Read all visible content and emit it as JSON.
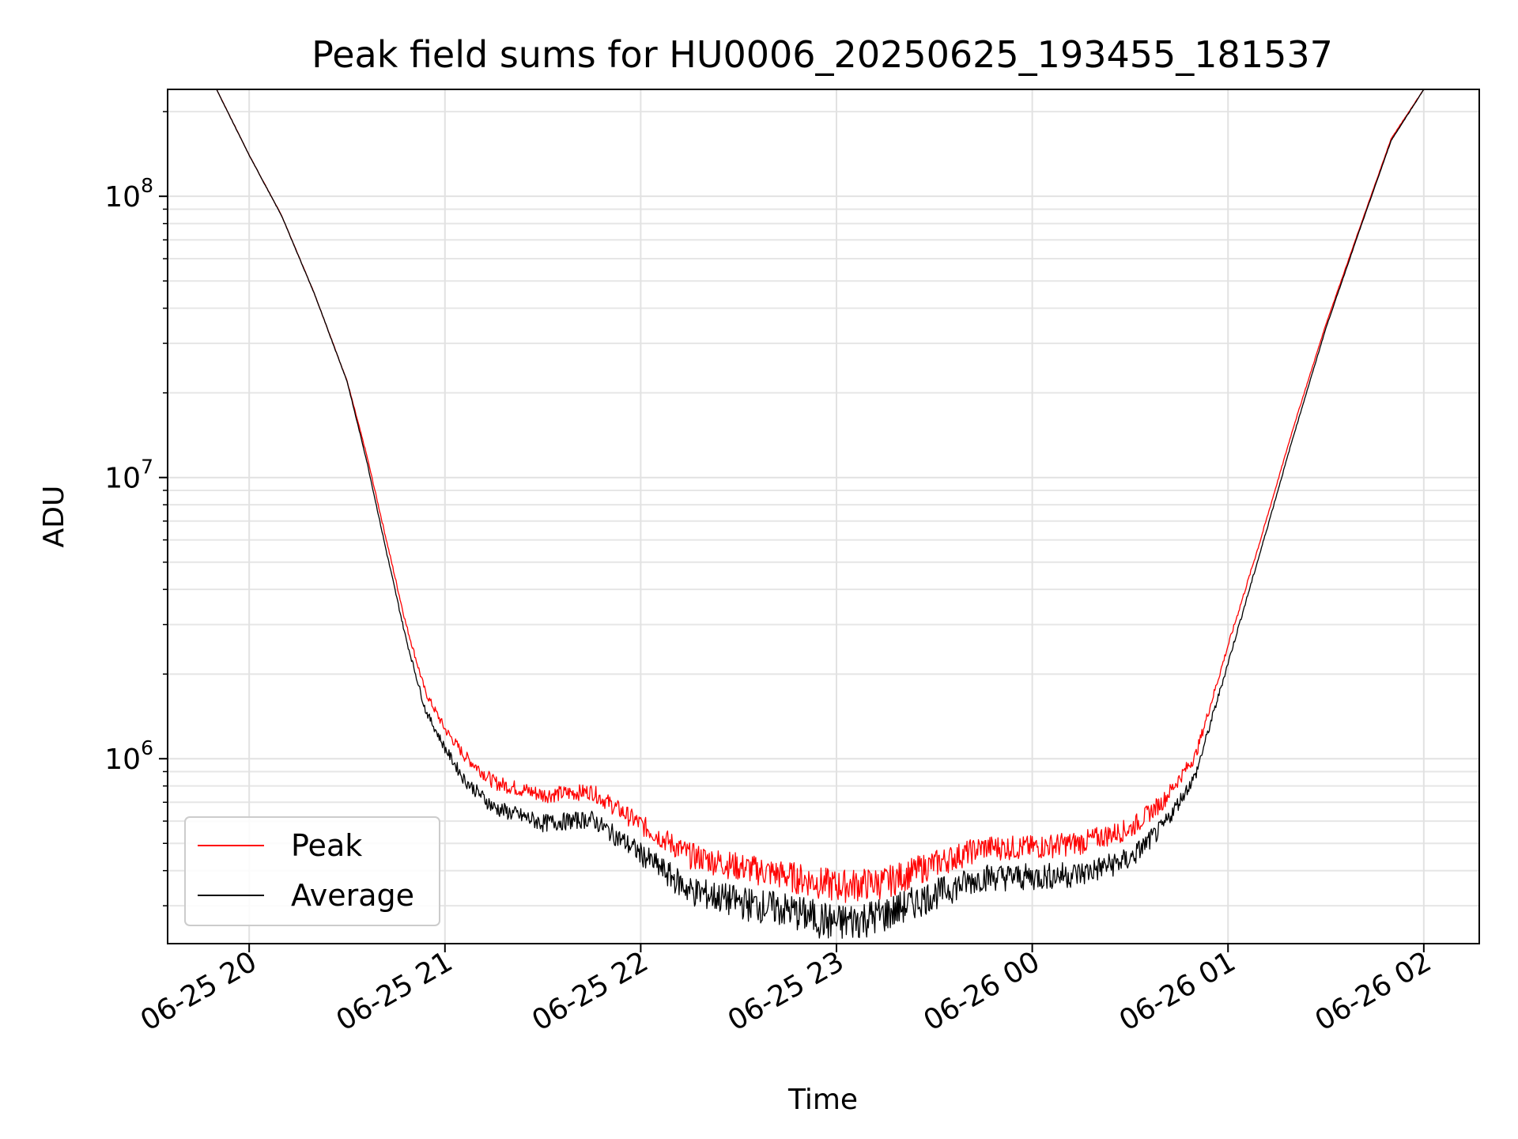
{
  "chart_data": {
    "type": "line",
    "title": "Peak field sums for HU0006_20250625_193455_181537",
    "xlabel": "Time",
    "ylabel": "ADU",
    "yscale": "log",
    "xlim": [
      "06-25 19:35",
      "06-26 02:17"
    ],
    "ylim": [
      220000,
      240000000
    ],
    "x_ticks": [
      "06-25 20",
      "06-25 21",
      "06-25 22",
      "06-25 23",
      "06-26 00",
      "06-26 01",
      "06-26 02"
    ],
    "y_ticks": [
      {
        "base": "10",
        "exp": "6"
      },
      {
        "base": "10",
        "exp": "7"
      },
      {
        "base": "10",
        "exp": "8"
      }
    ],
    "grid": true,
    "legend_position": "lower-left",
    "series": [
      {
        "name": "Peak",
        "color": "#ff0000",
        "x": [
          "06-25 19:50",
          "06-25 20:00",
          "06-25 20:10",
          "06-25 20:20",
          "06-25 20:30",
          "06-25 20:36",
          "06-25 20:42",
          "06-25 20:48",
          "06-25 20:54",
          "06-25 21:00",
          "06-25 21:06",
          "06-25 21:15",
          "06-25 21:30",
          "06-25 21:45",
          "06-25 22:00",
          "06-25 22:15",
          "06-25 22:30",
          "06-25 22:45",
          "06-25 23:00",
          "06-25 23:15",
          "06-25 23:30",
          "06-25 23:45",
          "06-26 00:00",
          "06-26 00:15",
          "06-26 00:30",
          "06-26 00:40",
          "06-26 00:50",
          "06-26 01:00",
          "06-26 01:10",
          "06-26 01:20",
          "06-26 01:30",
          "06-26 01:40",
          "06-26 01:50",
          "06-26 02:00"
        ],
        "y": [
          240000000,
          140000000,
          85000000,
          45000000,
          22000000,
          12000000,
          6000000,
          3000000,
          1700000,
          1250000,
          1000000,
          800000,
          720000,
          740000,
          560000,
          430000,
          390000,
          360000,
          330000,
          340000,
          400000,
          460000,
          460000,
          480000,
          540000,
          680000,
          1000000,
          2500000,
          6000000,
          15000000,
          35000000,
          75000000,
          160000000,
          240000000
        ]
      },
      {
        "name": "Average",
        "color": "#000000",
        "x": [
          "06-25 19:50",
          "06-25 20:00",
          "06-25 20:10",
          "06-25 20:20",
          "06-25 20:30",
          "06-25 20:36",
          "06-25 20:42",
          "06-25 20:48",
          "06-25 20:54",
          "06-25 21:00",
          "06-25 21:06",
          "06-25 21:15",
          "06-25 21:30",
          "06-25 21:45",
          "06-25 22:00",
          "06-25 22:15",
          "06-25 22:30",
          "06-25 22:45",
          "06-25 23:00",
          "06-25 23:15",
          "06-25 23:30",
          "06-25 23:45",
          "06-26 00:00",
          "06-26 00:15",
          "06-26 00:30",
          "06-26 00:40",
          "06-26 00:50",
          "06-26 01:00",
          "06-26 01:10",
          "06-26 01:20",
          "06-26 01:30",
          "06-26 01:40",
          "06-26 01:50",
          "06-26 02:00"
        ],
        "y": [
          240000000,
          140000000,
          85000000,
          45000000,
          22000000,
          11500000,
          5500000,
          2700000,
          1500000,
          1100000,
          850000,
          680000,
          600000,
          620000,
          470000,
          350000,
          320000,
          300000,
          270000,
          290000,
          340000,
          390000,
          390000,
          400000,
          450000,
          580000,
          880000,
          2200000,
          5500000,
          14000000,
          34000000,
          74000000,
          158000000,
          240000000
        ]
      }
    ]
  }
}
